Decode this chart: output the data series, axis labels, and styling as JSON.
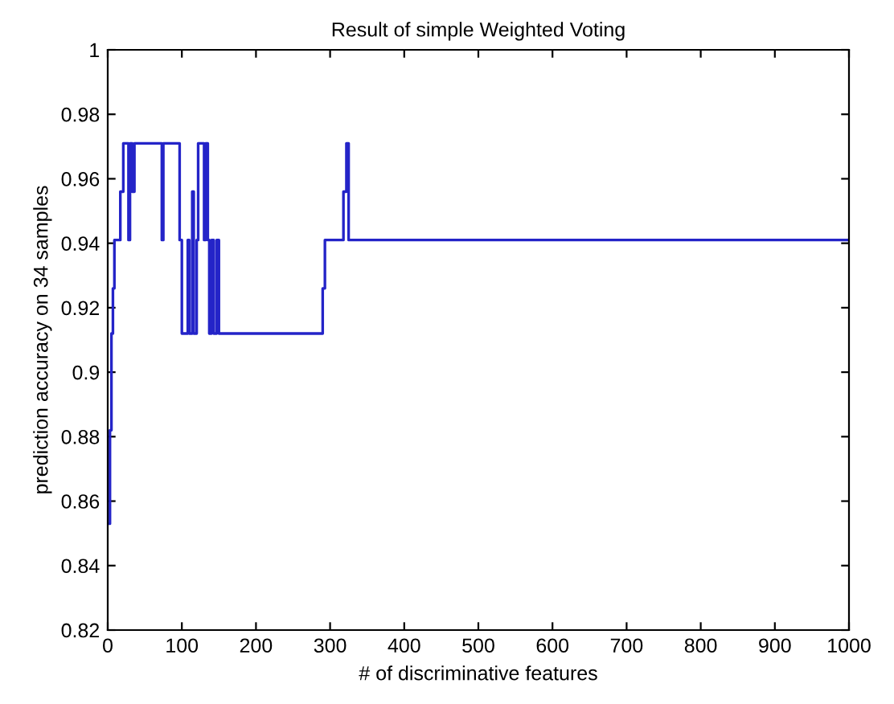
{
  "chart_data": {
    "type": "step",
    "title": "Result of simple Weighted Voting",
    "xlabel": "# of discriminative features",
    "ylabel": "prediction accuracy on 34 samples",
    "x": [
      1,
      3,
      5,
      7,
      9,
      17,
      21,
      28,
      30,
      33,
      36,
      73,
      75,
      97,
      100,
      108,
      110,
      114,
      116,
      120,
      122,
      130,
      132,
      135,
      137,
      140,
      143,
      147,
      150,
      290,
      293,
      318,
      322,
      325,
      1000
    ],
    "series": [
      {
        "color": "#2424c8",
        "values": [
          0.853,
          0.882,
          0.912,
          0.926,
          0.941,
          0.956,
          0.971,
          0.941,
          0.971,
          0.956,
          0.971,
          0.941,
          0.971,
          0.941,
          0.912,
          0.941,
          0.912,
          0.956,
          0.912,
          0.941,
          0.971,
          0.941,
          0.971,
          0.941,
          0.912,
          0.941,
          0.912,
          0.941,
          0.912,
          0.926,
          0.941,
          0.956,
          0.971,
          0.941,
          0.941
        ]
      }
    ],
    "xlim": [
      0,
      1000
    ],
    "ylim": [
      0.82,
      1
    ],
    "xticks": [
      0,
      100,
      200,
      300,
      400,
      500,
      600,
      700,
      800,
      900,
      1000
    ],
    "yticks": [
      0.82,
      0.84,
      0.86,
      0.88,
      0.9,
      0.92,
      0.94,
      0.96,
      0.98,
      1
    ],
    "grid": false,
    "legend": false
  }
}
